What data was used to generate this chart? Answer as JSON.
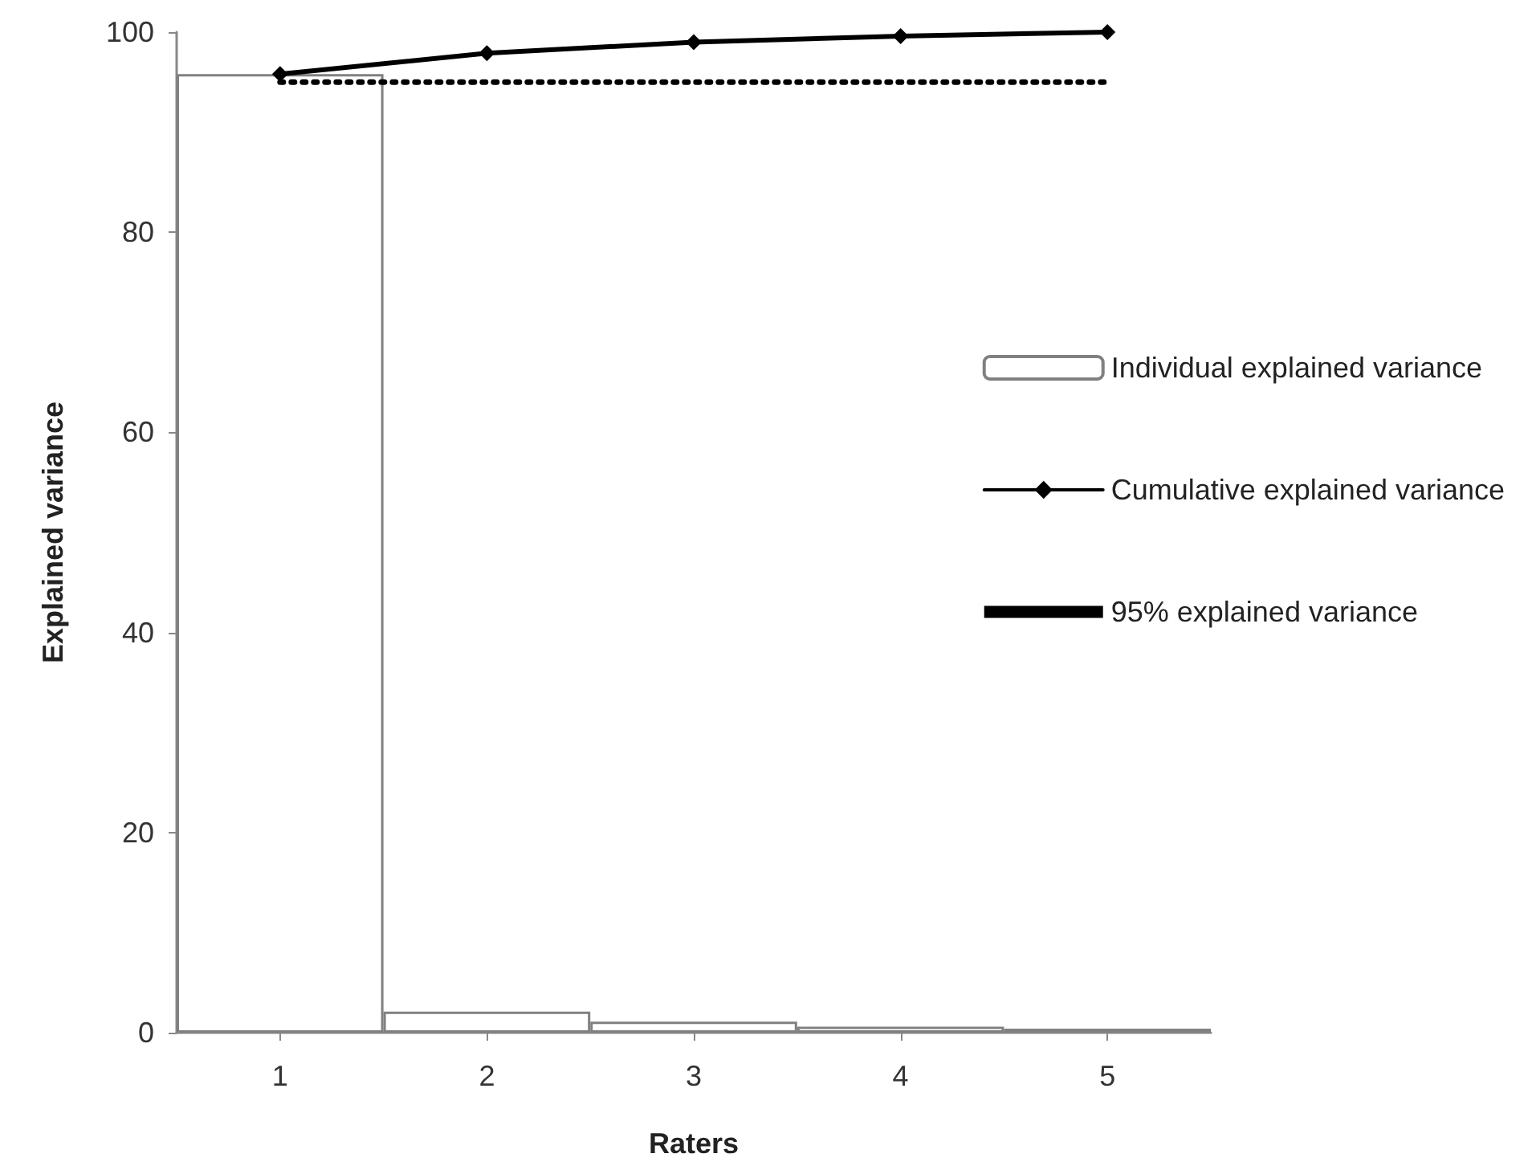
{
  "chart_data": {
    "type": "bar",
    "xlabel": "Raters",
    "ylabel": "Explained variance",
    "categories": [
      "1",
      "2",
      "3",
      "4",
      "5"
    ],
    "series": [
      {
        "name": "Individual explained variance",
        "type": "bar",
        "color": "#ffffff",
        "values": [
          95.8,
          2.1,
          1.1,
          0.6,
          0.4
        ]
      },
      {
        "name": "Cumulative explained variance",
        "type": "line",
        "color": "#000000",
        "marker": "diamond",
        "line_style": "solid",
        "values": [
          95.8,
          97.9,
          99.0,
          99.6,
          100
        ]
      },
      {
        "name": "95% explained variance",
        "type": "line",
        "color": "#000000",
        "marker": "none",
        "line_style": "dotted",
        "values": [
          95,
          95,
          95,
          95,
          95
        ]
      }
    ],
    "ylim": [
      0,
      100
    ],
    "yticks": [
      0,
      20,
      40,
      60,
      80,
      100
    ],
    "grid": false,
    "legend": "right"
  }
}
